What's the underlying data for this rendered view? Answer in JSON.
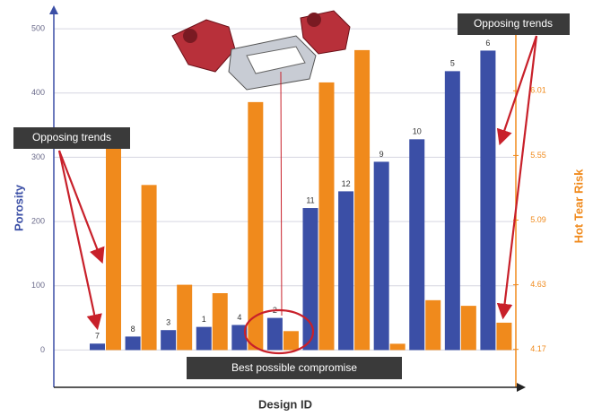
{
  "chart_data": {
    "type": "bar",
    "x_label": "Design ID",
    "y_label": "Porosity",
    "y2_label": "Hot Tear Risk",
    "categories": [
      "7",
      "8",
      "3",
      "1",
      "4",
      "2",
      "11",
      "12",
      "9",
      "10",
      "5",
      "6"
    ],
    "series": [
      {
        "color": "#3b4fa6",
        "values": [
          10,
          21,
          31,
          36,
          39,
          50,
          221,
          247,
          293,
          328,
          434,
          466
        ]
      },
      {
        "color": "#f08a1c",
        "axis": "y2",
        "values": [
          5.62,
          5.34,
          4.63,
          4.57,
          5.93,
          4.3,
          6.07,
          6.3,
          4.21,
          4.52,
          4.48,
          4.36
        ]
      }
    ],
    "ylim": [
      -58,
      528
    ],
    "yticks": [
      0,
      100,
      200,
      300,
      400,
      500
    ],
    "y2lim": [
      3.9,
      6.58
    ],
    "y2ticks": [
      4.17,
      4.63,
      5.09,
      5.55,
      6.01
    ],
    "grid": true,
    "annotations": [
      "Opposing trends",
      "Opposing trends",
      "Best possible compromise"
    ]
  }
}
